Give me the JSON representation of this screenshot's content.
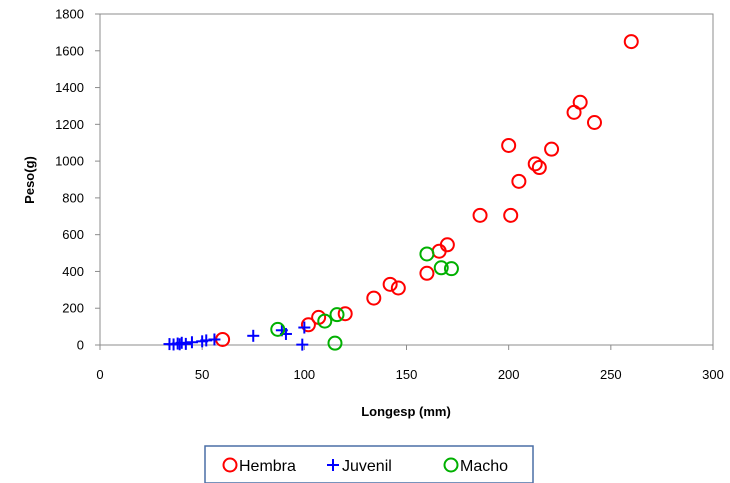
{
  "chart_data": {
    "type": "scatter",
    "title": "",
    "xlabel": "Longesp (mm)",
    "ylabel": "Peso(g)",
    "xlim": [
      0,
      300
    ],
    "ylim": [
      0,
      1800
    ],
    "xticks": [
      "0",
      "50",
      "100",
      "150",
      "200",
      "250",
      "300"
    ],
    "yticks": [
      "0",
      "200",
      "400",
      "600",
      "800",
      "1000",
      "1200",
      "1400",
      "1600",
      "1800"
    ],
    "grid": false,
    "legend_position": "bottom",
    "series": [
      {
        "name": "Hembra",
        "marker": "circle",
        "color": "#ff0000",
        "points": [
          [
            60,
            30
          ],
          [
            102,
            110
          ],
          [
            107,
            150
          ],
          [
            120,
            170
          ],
          [
            134,
            255
          ],
          [
            142,
            330
          ],
          [
            146,
            310
          ],
          [
            160,
            390
          ],
          [
            166,
            510
          ],
          [
            170,
            545
          ],
          [
            186,
            705
          ],
          [
            200,
            1085
          ],
          [
            201,
            705
          ],
          [
            205,
            890
          ],
          [
            213,
            985
          ],
          [
            215,
            965
          ],
          [
            221,
            1065
          ],
          [
            232,
            1265
          ],
          [
            235,
            1320
          ],
          [
            242,
            1210
          ],
          [
            260,
            1650
          ]
        ]
      },
      {
        "name": "Juvenil",
        "marker": "plus",
        "color": "#0000ff",
        "points": [
          [
            34,
            5
          ],
          [
            36,
            3
          ],
          [
            38,
            8
          ],
          [
            39,
            4
          ],
          [
            40,
            12
          ],
          [
            42,
            6
          ],
          [
            45,
            15
          ],
          [
            50,
            20
          ],
          [
            52,
            25
          ],
          [
            56,
            30
          ],
          [
            75,
            50
          ],
          [
            89,
            80
          ],
          [
            91,
            60
          ],
          [
            99,
            2
          ],
          [
            100,
            95
          ]
        ]
      },
      {
        "name": "Macho",
        "marker": "circle",
        "color": "#00b000",
        "points": [
          [
            87,
            85
          ],
          [
            110,
            130
          ],
          [
            116,
            165
          ],
          [
            115,
            10
          ],
          [
            160,
            495
          ],
          [
            167,
            420
          ],
          [
            172,
            415
          ]
        ]
      }
    ]
  }
}
